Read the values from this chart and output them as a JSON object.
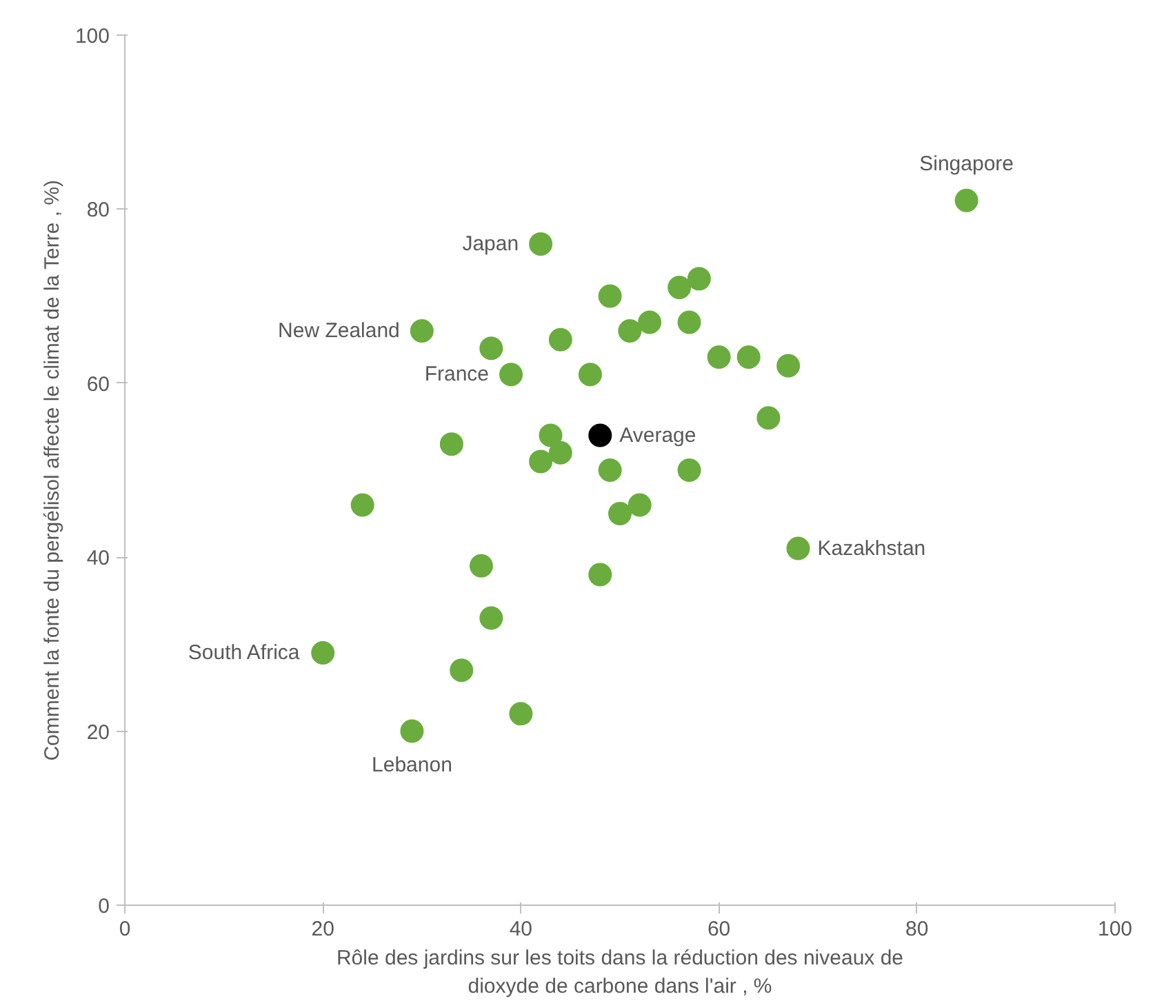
{
  "chart_data": {
    "type": "scatter",
    "xlabel": "Rôle des jardins sur les toits dans la réduction des niveaux de dioxyde de carbone dans l'air , %",
    "ylabel": "Comment la fonte du pergélisol affecte le climat de la Terre , %)",
    "xlim": [
      0,
      100
    ],
    "ylim": [
      0,
      100
    ],
    "xticks": [
      0,
      20,
      40,
      60,
      80,
      100
    ],
    "yticks": [
      0,
      20,
      40,
      60,
      80,
      100
    ],
    "grid": false,
    "legend": false,
    "marker": "circle",
    "series": [
      {
        "color": "#6aad3e",
        "x": [
          85,
          42,
          49,
          56,
          58,
          53,
          51,
          57,
          30,
          37,
          44,
          39,
          47,
          60,
          63,
          67,
          65,
          43,
          44,
          42,
          33,
          49,
          57,
          50,
          52,
          24,
          68,
          36,
          48,
          37,
          20,
          34,
          40,
          29
        ],
        "values": [
          81,
          76,
          70,
          71,
          72,
          67,
          66,
          67,
          66,
          64,
          65,
          61,
          61,
          63,
          63,
          62,
          56,
          54,
          52,
          51,
          53,
          50,
          50,
          45,
          46,
          46,
          41,
          39,
          38,
          33,
          29,
          27,
          22,
          20
        ]
      },
      {
        "name": "Average",
        "color": "#000000",
        "x": [
          48
        ],
        "values": [
          54
        ]
      }
    ],
    "annotations": [
      {
        "text": "Singapore",
        "x": 85,
        "y": 81
      },
      {
        "text": "Japan",
        "x": 42,
        "y": 76
      },
      {
        "text": "New Zealand",
        "x": 30,
        "y": 66
      },
      {
        "text": "France",
        "x": 39,
        "y": 61
      },
      {
        "text": "Kazakhstan",
        "x": 68,
        "y": 41
      },
      {
        "text": "South Africa",
        "x": 20,
        "y": 29
      },
      {
        "text": "Lebanon",
        "x": 29,
        "y": 20
      }
    ]
  }
}
